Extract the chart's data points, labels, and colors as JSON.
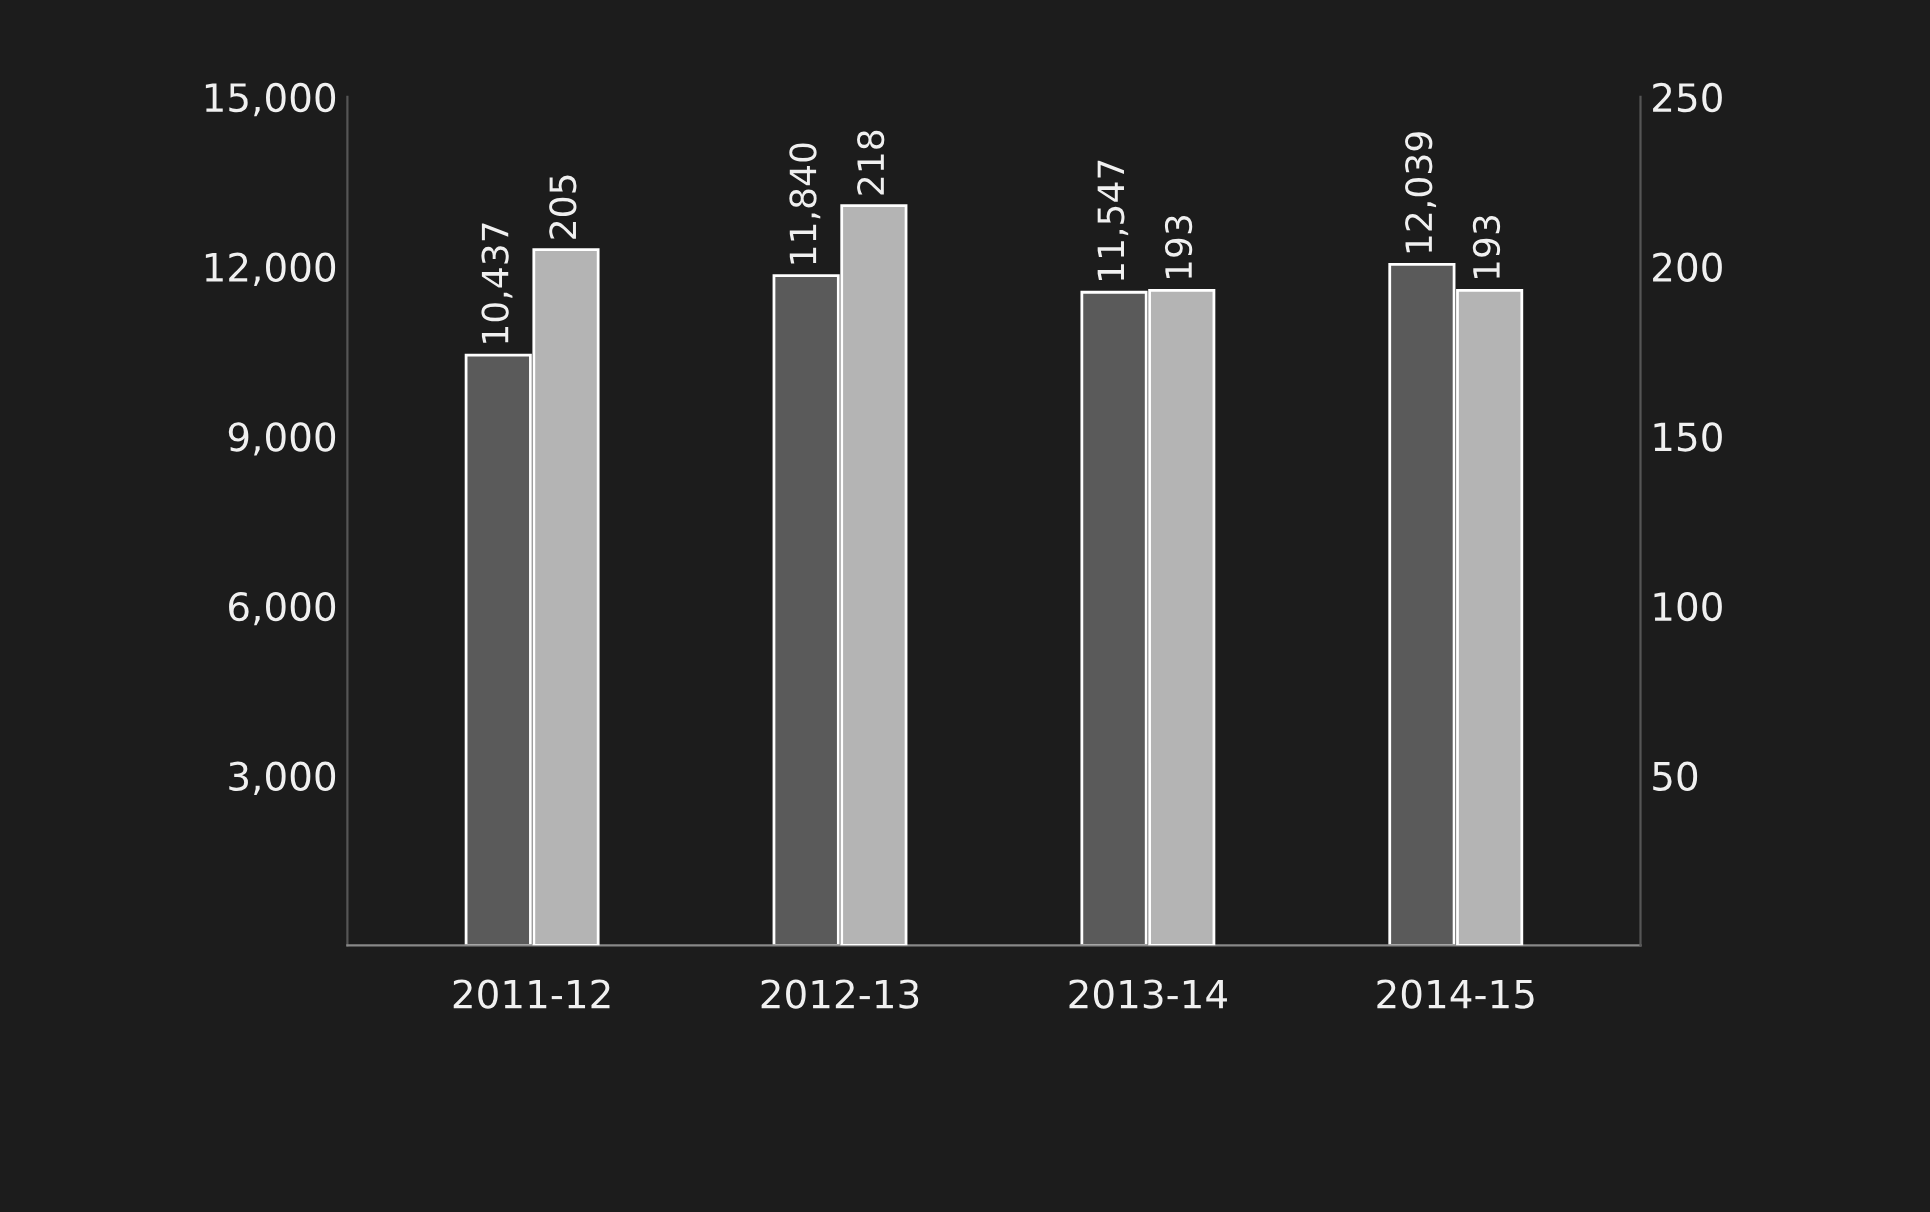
{
  "chart_data": {
    "type": "bar",
    "categories": [
      "2011-12",
      "2012-13",
      "2013-14",
      "2014-15"
    ],
    "series": [
      {
        "color": "#5a5a5a",
        "values": [
          10437,
          11840,
          11547,
          12039
        ],
        "value_labels": [
          "10,437",
          "11,840",
          "11,547",
          "12,039"
        ],
        "axis": "y"
      },
      {
        "color": "#b4b4b4",
        "values": [
          205,
          218,
          193,
          193
        ],
        "value_labels": [
          "205",
          "218",
          "193",
          "193"
        ],
        "axis": "y2"
      }
    ],
    "ylim": [
      0,
      15000
    ],
    "yticks": [
      {
        "value": 0,
        "label": null
      },
      {
        "value": 3000,
        "label": "3,000"
      },
      {
        "value": 6000,
        "label": "6,000"
      },
      {
        "value": 9000,
        "label": "9,000"
      },
      {
        "value": 12000,
        "label": "12,000"
      },
      {
        "value": 15000,
        "label": "15,000"
      }
    ],
    "y2lim": [
      0,
      250
    ],
    "y2ticks": [
      {
        "value": 0,
        "label": null
      },
      50,
      100,
      150,
      200,
      250
    ],
    "grid": false,
    "legend": false
  }
}
